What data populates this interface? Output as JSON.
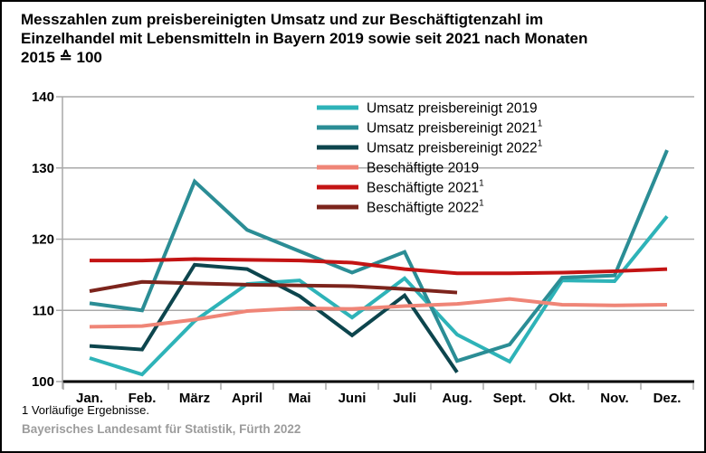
{
  "header": {
    "title_lines": [
      "Messzahlen zum preisbereinigten Umsatz und zur Beschäftigtenzahl im",
      "Einzelhandel mit Lebensmitteln in Bayern 2019 sowie seit 2021 nach Monaten",
      "2015 ≙ 100"
    ]
  },
  "footnote": "1  Vorläufige Ergebnisse.",
  "source": "Bayerisches Landesamt für Statistik, Fürth 2022",
  "chart_data": {
    "type": "line",
    "title": "Messzahlen zum preisbereinigten Umsatz und zur Beschäftigtenzahl im Einzelhandel mit Lebensmitteln in Bayern 2019 sowie seit 2021 nach Monaten, 2015 ≙ 100",
    "xlabel": "",
    "ylabel": "",
    "ylim": [
      100,
      140
    ],
    "yticks": [
      100,
      110,
      120,
      130,
      140
    ],
    "grid": true,
    "legend_position": "top-center-inside",
    "categories": [
      "Jan.",
      "Feb.",
      "März",
      "April",
      "Mai",
      "Juni",
      "Juli",
      "Aug.",
      "Sept.",
      "Okt.",
      "Nov.",
      "Dez."
    ],
    "series": [
      {
        "name": "Umsatz preisbereinigt 2019",
        "footnote_mark": "",
        "color": "#2eb3b8",
        "values": [
          103.3,
          101,
          108.5,
          113.7,
          114.2,
          109,
          114.5,
          106.6,
          102.8,
          114.2,
          114.1,
          123.2
        ]
      },
      {
        "name": "Umsatz preisbereinigt 2021",
        "footnote_mark": "1",
        "color": "#2b8d95",
        "values": [
          111,
          110,
          128.1,
          121.3,
          118.3,
          115.3,
          118.2,
          102.9,
          105.2,
          114.6,
          114.9,
          132.5
        ]
      },
      {
        "name": "Umsatz preisbereinigt 2022",
        "footnote_mark": "1",
        "color": "#0d454d",
        "values": [
          105,
          104.5,
          116.4,
          115.8,
          112,
          106.5,
          112.1,
          101.3,
          null,
          null,
          null,
          null
        ]
      },
      {
        "name": "Beschäftigte 2019",
        "footnote_mark": "",
        "color": "#ef8577",
        "values": [
          107.7,
          107.8,
          108.7,
          109.9,
          110.3,
          110.2,
          110.6,
          110.9,
          111.6,
          110.8,
          110.7,
          110.8
        ]
      },
      {
        "name": "Beschäftigte 2021",
        "footnote_mark": "1",
        "color": "#c31414",
        "values": [
          117,
          117,
          117.2,
          117.1,
          117,
          116.7,
          115.8,
          115.2,
          115.2,
          115.3,
          115.5,
          115.8
        ]
      },
      {
        "name": "Beschäftigte 2022",
        "footnote_mark": "1",
        "color": "#7c241c",
        "values": [
          112.7,
          114,
          113.8,
          113.6,
          113.5,
          113.4,
          113,
          112.5,
          null,
          null,
          null,
          null
        ]
      }
    ],
    "style": {
      "grid_color": "#a9a9a9",
      "axis_color": "#000000",
      "label_color": "#000000"
    }
  }
}
